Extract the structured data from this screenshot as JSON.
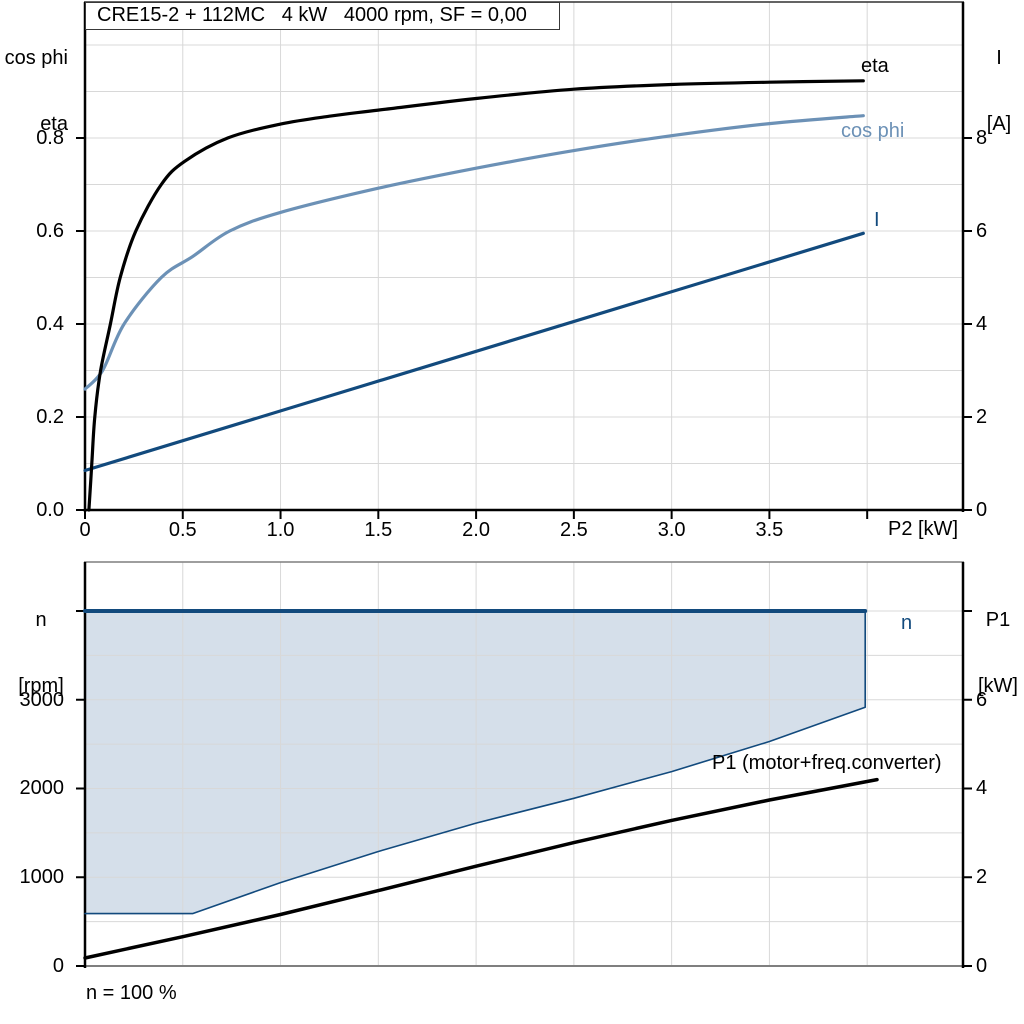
{
  "title": "CRE15-2 + 112MC   4 kW   4000 rpm, SF = 0,00",
  "footnote": "n = 100 %",
  "colors": {
    "eta": "#000000",
    "cos_phi": "#6C91B6",
    "current": "#124A7D",
    "speed": "#124A7D",
    "p1": "#000000",
    "area_fill": "#D5DFEA",
    "grid": "#D8D8D8",
    "frame_gray": "#7F7F7F",
    "axis": "#000000"
  },
  "chart_data": [
    {
      "type": "line",
      "name": "motor-electrical-curves",
      "x_axis": {
        "title": "P2 [kW]",
        "min": 0,
        "max": 4.49,
        "grid": {
          "from": 0.5,
          "to": 4.0,
          "step": 0.5
        },
        "ticks": [
          {
            "v": 0,
            "t": "0"
          },
          {
            "v": 0.5,
            "t": "0.5"
          },
          {
            "v": 1,
            "t": "1.0"
          },
          {
            "v": 1.5,
            "t": "1.5"
          },
          {
            "v": 2,
            "t": "2.0"
          },
          {
            "v": 2.5,
            "t": "2.5"
          },
          {
            "v": 3,
            "t": "3.0"
          },
          {
            "v": 3.5,
            "t": "3.5"
          },
          {
            "v": 4,
            "t": ""
          }
        ]
      },
      "y_left": {
        "title_lines": [
          "cos phi",
          "eta"
        ],
        "min": 0,
        "max": 1.0925,
        "grid": {
          "from": 0.1,
          "to": 1.0,
          "step": 0.1
        },
        "ticks": [
          {
            "v": 0,
            "t": "0.0"
          },
          {
            "v": 0.2,
            "t": "0.2"
          },
          {
            "v": 0.4,
            "t": "0.4"
          },
          {
            "v": 0.6,
            "t": "0.6"
          },
          {
            "v": 0.8,
            "t": "0.8"
          }
        ]
      },
      "y_right": {
        "title_lines": [
          "I",
          "[A]"
        ],
        "min": 0,
        "max": 10.925,
        "ticks": [
          {
            "v": 0,
            "t": "0"
          },
          {
            "v": 2,
            "t": "2"
          },
          {
            "v": 4,
            "t": "4"
          },
          {
            "v": 6,
            "t": "6"
          },
          {
            "v": 8,
            "t": "8"
          }
        ]
      },
      "series": [
        {
          "name": "cos-phi",
          "label": "cos phi",
          "axis": "left",
          "color": "#6C91B6",
          "width": 3.2,
          "smooth": true,
          "points": [
            [
              0,
              0.26
            ],
            [
              0.09,
              0.3
            ],
            [
              0.2,
              0.4
            ],
            [
              0.39,
              0.5
            ],
            [
              0.55,
              0.545
            ],
            [
              0.74,
              0.6
            ],
            [
              1.0,
              0.64
            ],
            [
              1.5,
              0.692
            ],
            [
              2.0,
              0.735
            ],
            [
              2.5,
              0.773
            ],
            [
              3.0,
              0.805
            ],
            [
              3.5,
              0.831
            ],
            [
              3.98,
              0.848
            ]
          ]
        },
        {
          "name": "current",
          "label": "I",
          "axis": "right",
          "color": "#124A7D",
          "width": 3.2,
          "smooth": false,
          "points": [
            [
              0,
              0.85
            ],
            [
              3.98,
              5.95
            ]
          ]
        },
        {
          "name": "eta",
          "label": "eta",
          "axis": "left",
          "color": "#000000",
          "width": 3.2,
          "smooth": true,
          "points": [
            [
              0.02,
              0
            ],
            [
              0.035,
              0.1
            ],
            [
              0.05,
              0.2
            ],
            [
              0.08,
              0.3
            ],
            [
              0.13,
              0.4
            ],
            [
              0.18,
              0.5
            ],
            [
              0.26,
              0.6
            ],
            [
              0.39,
              0.7
            ],
            [
              0.51,
              0.75
            ],
            [
              0.73,
              0.8
            ],
            [
              1.0,
              0.83
            ],
            [
              1.25,
              0.847
            ],
            [
              1.5,
              0.86
            ],
            [
              2.0,
              0.885
            ],
            [
              2.5,
              0.905
            ],
            [
              3.0,
              0.915
            ],
            [
              3.5,
              0.92
            ],
            [
              3.98,
              0.923
            ]
          ]
        }
      ]
    },
    {
      "type": "area",
      "name": "speed-and-input-power",
      "x_axis": {
        "title": "",
        "min": 0,
        "max": 4.49,
        "grid": {
          "from": 0.5,
          "to": 4.0,
          "step": 0.5
        },
        "ticks": []
      },
      "y_left": {
        "title_lines": [
          "n",
          "[rpm]"
        ],
        "min": 0,
        "max": 4552,
        "grid": {
          "from": 500,
          "to": 4000,
          "step": 500
        },
        "ticks": [
          {
            "v": 0,
            "t": "0"
          },
          {
            "v": 1000,
            "t": "1000"
          },
          {
            "v": 2000,
            "t": "2000"
          },
          {
            "v": 3000,
            "t": "3000"
          },
          {
            "v": 4000,
            "t": ""
          }
        ]
      },
      "y_right": {
        "title_lines": [
          "P1",
          "[kW]"
        ],
        "min": 0,
        "max": 9.104,
        "ticks": [
          {
            "v": 0,
            "t": "0"
          },
          {
            "v": 2,
            "t": "2"
          },
          {
            "v": 4,
            "t": "4"
          },
          {
            "v": 6,
            "t": "6"
          },
          {
            "v": 8,
            "t": ""
          }
        ]
      },
      "series": [
        {
          "name": "speed-operating-area",
          "axis": "left",
          "fill": "#D5DFEA",
          "points": [
            [
              0,
              4000
            ],
            [
              3.99,
              4000
            ],
            [
              3.99,
              2915
            ],
            [
              3.5,
              2530
            ],
            [
              3.0,
              2190
            ],
            [
              2.5,
              1890
            ],
            [
              2.0,
              1610
            ],
            [
              1.5,
              1290
            ],
            [
              1.0,
              940
            ],
            [
              0.55,
              590
            ],
            [
              0,
              590
            ]
          ]
        },
        {
          "name": "speed-min-curve",
          "axis": "left",
          "color": "#124A7D",
          "width": 1.6,
          "smooth": false,
          "points": [
            [
              0,
              590
            ],
            [
              0.55,
              590
            ],
            [
              1.0,
              940
            ],
            [
              1.5,
              1290
            ],
            [
              2.0,
              1610
            ],
            [
              2.5,
              1890
            ],
            [
              3.0,
              2190
            ],
            [
              3.5,
              2530
            ],
            [
              3.99,
              2915
            ],
            [
              3.99,
              4000
            ]
          ]
        },
        {
          "name": "speed-setpoint",
          "label": "n",
          "axis": "left",
          "color": "#124A7D",
          "width": 4,
          "smooth": false,
          "points": [
            [
              0,
              4000
            ],
            [
              3.99,
              4000
            ]
          ]
        },
        {
          "name": "p1-input-power",
          "label": "P1 (motor+freq.converter)",
          "axis": "right",
          "color": "#000000",
          "width": 3.5,
          "smooth": false,
          "points": [
            [
              0,
              0.18
            ],
            [
              0.5,
              0.66
            ],
            [
              1.0,
              1.16
            ],
            [
              1.5,
              1.7
            ],
            [
              2.0,
              2.25
            ],
            [
              2.5,
              2.78
            ],
            [
              3.0,
              3.28
            ],
            [
              3.5,
              3.74
            ],
            [
              4.05,
              4.2
            ]
          ]
        }
      ]
    }
  ]
}
